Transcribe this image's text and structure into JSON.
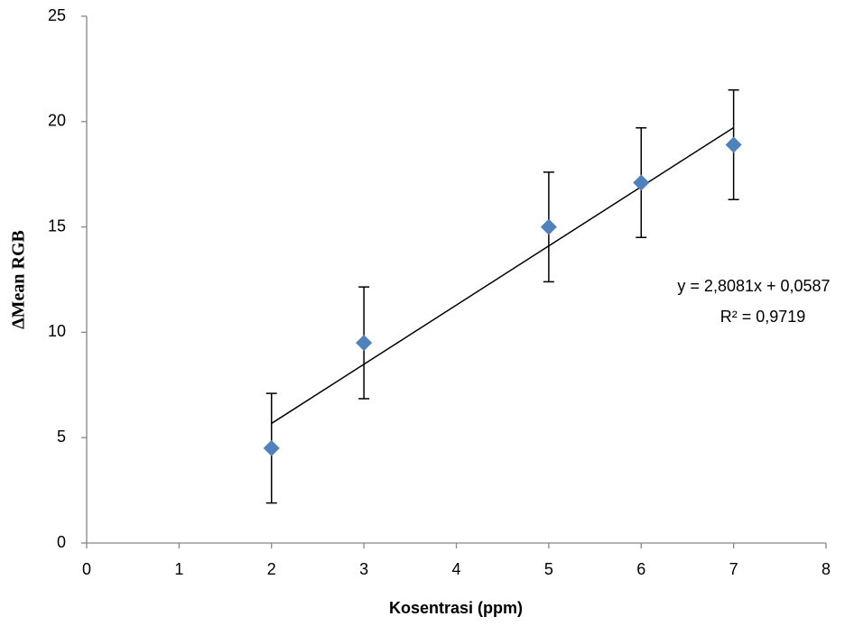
{
  "chart_data": {
    "type": "scatter",
    "x_label": "Kosentrasi (ppm)",
    "y_label": "ΔMean RGB",
    "x": [
      2,
      3,
      5,
      6,
      7
    ],
    "values": [
      4.5,
      9.5,
      15.0,
      17.1,
      18.9
    ],
    "errors": [
      2.6,
      2.65,
      2.6,
      2.6,
      2.6
    ],
    "color": "#4f81bd",
    "xlim": [
      0,
      8
    ],
    "xticks": [
      0,
      1,
      2,
      3,
      4,
      5,
      6,
      7,
      8
    ],
    "ylim": [
      0,
      25
    ],
    "yticks": [
      0,
      5,
      10,
      15,
      20,
      25
    ],
    "grid": false,
    "trendline": {
      "slope": 2.8081,
      "intercept": 0.0587,
      "label": "y = 2,8081x + 0,0587",
      "r2": 0.9719,
      "r2_label": "R² = 0,9719"
    }
  }
}
